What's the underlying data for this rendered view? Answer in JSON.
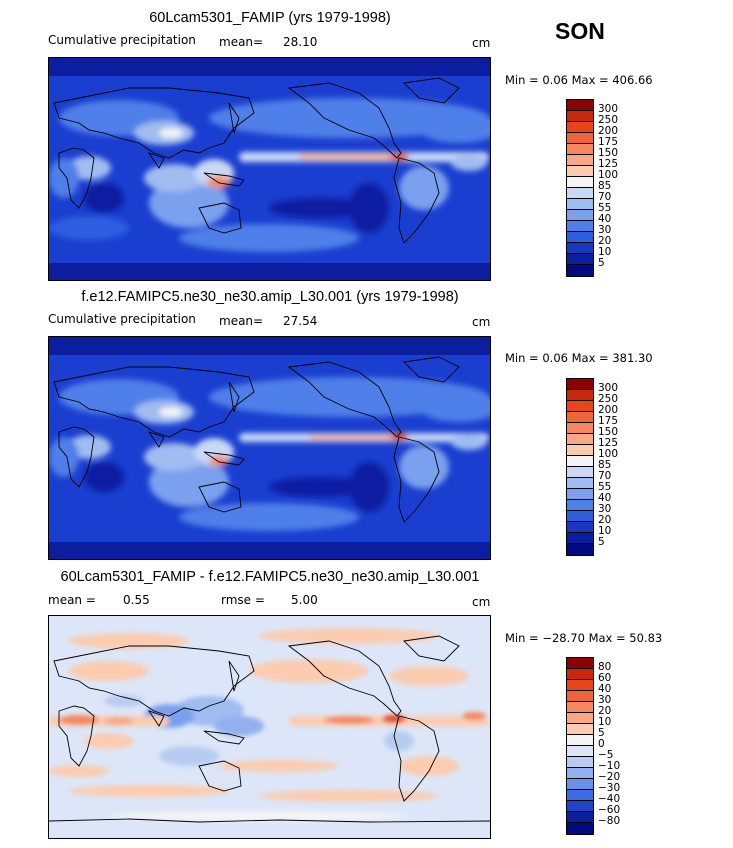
{
  "season": "SON",
  "panels": [
    {
      "title": "60Lcam5301_FAMIP (yrs 1979-1998)",
      "left_label": "Cumulative precipitation",
      "mean_label": "mean=",
      "mean_value": "28.10",
      "rmse_label": "",
      "rmse_value": "",
      "units": "cm",
      "minmax": "Min =    0.06  Max = 406.66",
      "levels": [
        "300",
        "250",
        "200",
        "175",
        "150",
        "125",
        "100",
        "85",
        "70",
        "55",
        "40",
        "30",
        "20",
        "10",
        "5"
      ],
      "colors": [
        "#8b0000",
        "#c8280a",
        "#e8461a",
        "#f0643a",
        "#f5865f",
        "#f8a984",
        "#fbccb0",
        "#f4f4f4",
        "#c8d8f5",
        "#a0bcf0",
        "#7aa0ee",
        "#4f7fe8",
        "#2d5fe0",
        "#1838c0",
        "#0c1ea0",
        "#020a80"
      ]
    },
    {
      "title": "f.e12.FAMIPC5.ne30_ne30.amip_L30.001 (yrs 1979-1998)",
      "left_label": "Cumulative precipitation",
      "mean_label": "mean=",
      "mean_value": "27.54",
      "rmse_label": "",
      "rmse_value": "",
      "units": "cm",
      "minmax": "Min =    0.06  Max = 381.30",
      "levels": [
        "300",
        "250",
        "200",
        "175",
        "150",
        "125",
        "100",
        "85",
        "70",
        "55",
        "40",
        "30",
        "20",
        "10",
        "5"
      ],
      "colors": [
        "#8b0000",
        "#c8280a",
        "#e8461a",
        "#f0643a",
        "#f5865f",
        "#f8a984",
        "#fbccb0",
        "#f4f4f4",
        "#c8d8f5",
        "#a0bcf0",
        "#7aa0ee",
        "#4f7fe8",
        "#2d5fe0",
        "#1838c0",
        "#0c1ea0",
        "#020a80"
      ]
    },
    {
      "title": "60Lcam5301_FAMIP - f.e12.FAMIPC5.ne30_ne30.amip_L30.001",
      "left_label": "mean =",
      "mean_label": "",
      "mean_value": "0.55",
      "rmse_label": "rmse =",
      "rmse_value": "5.00",
      "units": "cm",
      "minmax": "Min = −28.70  Max =  50.83",
      "levels": [
        "80",
        "60",
        "40",
        "30",
        "20",
        "10",
        "5",
        "0",
        "−5",
        "−10",
        "−20",
        "−30",
        "−40",
        "−60",
        "−80"
      ],
      "colors": [
        "#8b0000",
        "#c8280a",
        "#e8461a",
        "#f0643a",
        "#f5865f",
        "#f8a984",
        "#fbccb0",
        "#f4f4f4",
        "#dce6f8",
        "#b8ccf2",
        "#92b0ee",
        "#6a90ea",
        "#3e6ce4",
        "#1e44c8",
        "#0c1ea0",
        "#020a80"
      ]
    }
  ]
}
